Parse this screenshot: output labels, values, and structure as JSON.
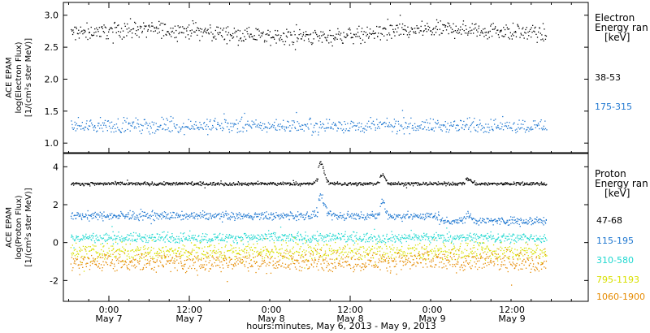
{
  "chart_data": [
    {
      "type": "scatter",
      "panel": "electron",
      "ylabel": [
        "ACE EPAM",
        "log(Electron Flux)",
        "[1/(cm²s ster MeV)]"
      ],
      "ylim": [
        0.85,
        3.2
      ],
      "yticks": [
        1.0,
        1.5,
        2.0,
        2.5,
        3.0
      ],
      "ytick_labels": [
        "1.0",
        "1.5",
        "2.0",
        "2.5",
        "3.0"
      ],
      "legend_title": [
        "Electron",
        "Energy ran",
        "[keV]"
      ],
      "series": [
        {
          "name": "38-53",
          "color": "#000000",
          "level": 2.72,
          "spread": 0.07
        },
        {
          "name": "175-315",
          "color": "#1f77d0",
          "level": 1.27,
          "spread": 0.06
        }
      ]
    },
    {
      "type": "scatter",
      "panel": "proton",
      "ylabel": [
        "ACE EPAM",
        "log(Proton Flux)",
        "[1/(cm²s ster MeV)]"
      ],
      "ylim": [
        -3.1,
        4.7
      ],
      "yticks": [
        -2,
        0,
        2,
        4
      ],
      "ytick_labels": [
        "-2",
        "0",
        "2",
        "4"
      ],
      "legend_title": [
        "Proton",
        "Energy ran",
        "[keV]"
      ],
      "series": [
        {
          "name": "47-68",
          "color": "#000000",
          "level": 3.1,
          "spread": 0.05
        },
        {
          "name": "115-195",
          "color": "#1f77d0",
          "level": 1.4,
          "spread": 0.12
        },
        {
          "name": "310-580",
          "color": "#20d8d0",
          "level": 0.25,
          "spread": 0.15
        },
        {
          "name": "795-1193",
          "color": "#d8e000",
          "level": -0.5,
          "spread": 0.25
        },
        {
          "name": "1060-1900",
          "color": "#e58a00",
          "level": -1.0,
          "spread": 0.3
        }
      ]
    }
  ],
  "x_axis": {
    "tick_labels": [
      {
        "time": "0:00",
        "date": "May 7"
      },
      {
        "time": "12:00",
        "date": "May 7"
      },
      {
        "time": "0:00",
        "date": "May 8"
      },
      {
        "time": "12:00",
        "date": "May 8"
      },
      {
        "time": "0:00",
        "date": "May 9"
      },
      {
        "time": "12:00",
        "date": "May 9"
      }
    ],
    "xlabel": "hours:minutes, May  6, 2013 - May  9, 2013"
  }
}
